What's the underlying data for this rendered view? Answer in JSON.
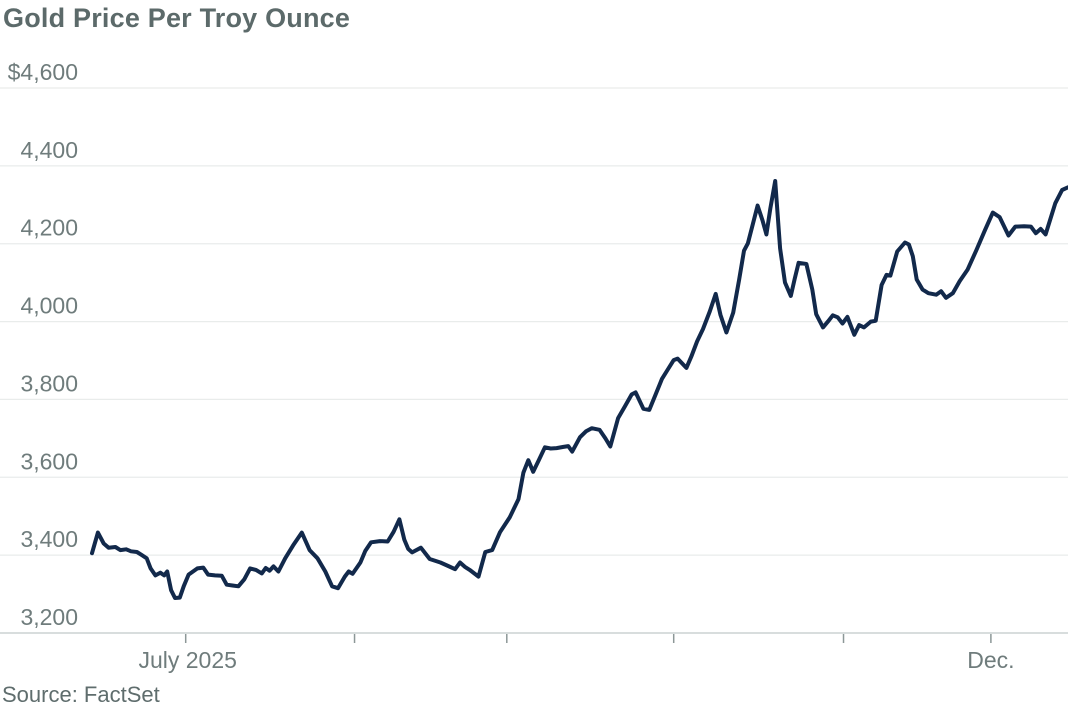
{
  "chart": {
    "title": "Gold Price Per Troy Ounce",
    "source": "Source: FactSet"
  },
  "colors": {
    "line": "#12294b",
    "gridline": "#e9eceb",
    "axis_line": "#ccd2d2",
    "tick": "#8c9797",
    "axis_text": "#6f7c7c",
    "title_text": "#5c6a6a"
  },
  "chart_data": {
    "type": "line",
    "title": "Gold Price Per Troy Ounce",
    "source": "FactSet",
    "unit": "USD per troy ounce",
    "grid": true,
    "legend": false,
    "y_axis": {
      "min": 3200,
      "max": 4600,
      "step": 200,
      "tick_labels": [
        "$4,600",
        "4,400",
        "4,200",
        "4,000",
        "3,800",
        "3,600",
        "3,400",
        "3,200"
      ]
    },
    "x_axis": {
      "ticks": [
        {
          "label": "July 2025",
          "pos": 0.096
        },
        {
          "label": "",
          "pos": 0.269
        },
        {
          "label": "",
          "pos": 0.425
        },
        {
          "label": "",
          "pos": 0.596
        },
        {
          "label": "",
          "pos": 0.77
        },
        {
          "label": "",
          "pos": 0.921
        }
      ],
      "end_label": {
        "label": "Dec.",
        "pos": 0.921
      }
    },
    "series": [
      {
        "name": "Gold price per troy ounce",
        "color": "#12294b",
        "points": [
          [
            0,
            3405
          ],
          [
            0.006,
            3458
          ],
          [
            0.012,
            3430
          ],
          [
            0.017,
            3419
          ],
          [
            0.024,
            3421
          ],
          [
            0.029,
            3413
          ],
          [
            0.035,
            3415
          ],
          [
            0.04,
            3410
          ],
          [
            0.046,
            3408
          ],
          [
            0.051,
            3400
          ],
          [
            0.056,
            3392
          ],
          [
            0.06,
            3366
          ],
          [
            0.065,
            3348
          ],
          [
            0.07,
            3355
          ],
          [
            0.074,
            3348
          ],
          [
            0.077,
            3358
          ],
          [
            0.081,
            3310
          ],
          [
            0.085,
            3290
          ],
          [
            0.09,
            3291
          ],
          [
            0.094,
            3320
          ],
          [
            0.099,
            3350
          ],
          [
            0.108,
            3366
          ],
          [
            0.114,
            3368
          ],
          [
            0.119,
            3350
          ],
          [
            0.126,
            3348
          ],
          [
            0.133,
            3347
          ],
          [
            0.138,
            3324
          ],
          [
            0.144,
            3322
          ],
          [
            0.15,
            3320
          ],
          [
            0.156,
            3338
          ],
          [
            0.162,
            3366
          ],
          [
            0.168,
            3362
          ],
          [
            0.174,
            3353
          ],
          [
            0.178,
            3367
          ],
          [
            0.182,
            3360
          ],
          [
            0.186,
            3371
          ],
          [
            0.191,
            3358
          ],
          [
            0.198,
            3392
          ],
          [
            0.206,
            3425
          ],
          [
            0.215,
            3458
          ],
          [
            0.223,
            3413
          ],
          [
            0.231,
            3392
          ],
          [
            0.239,
            3358
          ],
          [
            0.246,
            3320
          ],
          [
            0.252,
            3315
          ],
          [
            0.259,
            3345
          ],
          [
            0.263,
            3358
          ],
          [
            0.267,
            3352
          ],
          [
            0.275,
            3381
          ],
          [
            0.28,
            3411
          ],
          [
            0.286,
            3433
          ],
          [
            0.295,
            3436
          ],
          [
            0.303,
            3435
          ],
          [
            0.309,
            3460
          ],
          [
            0.315,
            3492
          ],
          [
            0.32,
            3440
          ],
          [
            0.324,
            3416
          ],
          [
            0.328,
            3407
          ],
          [
            0.337,
            3419
          ],
          [
            0.346,
            3390
          ],
          [
            0.357,
            3381
          ],
          [
            0.365,
            3372
          ],
          [
            0.372,
            3364
          ],
          [
            0.377,
            3381
          ],
          [
            0.382,
            3370
          ],
          [
            0.387,
            3362
          ],
          [
            0.396,
            3345
          ],
          [
            0.403,
            3408
          ],
          [
            0.41,
            3413
          ],
          [
            0.418,
            3459
          ],
          [
            0.428,
            3497
          ],
          [
            0.437,
            3544
          ],
          [
            0.442,
            3612
          ],
          [
            0.447,
            3644
          ],
          [
            0.452,
            3614
          ],
          [
            0.458,
            3645
          ],
          [
            0.464,
            3677
          ],
          [
            0.47,
            3674
          ],
          [
            0.476,
            3675
          ],
          [
            0.483,
            3678
          ],
          [
            0.488,
            3680
          ],
          [
            0.492,
            3666
          ],
          [
            0.5,
            3703
          ],
          [
            0.506,
            3718
          ],
          [
            0.512,
            3726
          ],
          [
            0.52,
            3722
          ],
          [
            0.526,
            3700
          ],
          [
            0.531,
            3679
          ],
          [
            0.539,
            3752
          ],
          [
            0.546,
            3782
          ],
          [
            0.553,
            3813
          ],
          [
            0.557,
            3818
          ],
          [
            0.565,
            3776
          ],
          [
            0.571,
            3773
          ],
          [
            0.577,
            3810
          ],
          [
            0.584,
            3853
          ],
          [
            0.59,
            3877
          ],
          [
            0.596,
            3901
          ],
          [
            0.6,
            3905
          ],
          [
            0.609,
            3881
          ],
          [
            0.614,
            3910
          ],
          [
            0.62,
            3949
          ],
          [
            0.626,
            3981
          ],
          [
            0.633,
            4026
          ],
          [
            0.639,
            4071
          ],
          [
            0.644,
            4017
          ],
          [
            0.65,
            3972
          ],
          [
            0.657,
            4023
          ],
          [
            0.663,
            4107
          ],
          [
            0.668,
            4182
          ],
          [
            0.672,
            4201
          ],
          [
            0.677,
            4250
          ],
          [
            0.682,
            4298
          ],
          [
            0.687,
            4260
          ],
          [
            0.691,
            4224
          ],
          [
            0.695,
            4290
          ],
          [
            0.7,
            4361
          ],
          [
            0.705,
            4188
          ],
          [
            0.71,
            4100
          ],
          [
            0.716,
            4066
          ],
          [
            0.72,
            4110
          ],
          [
            0.724,
            4151
          ],
          [
            0.732,
            4148
          ],
          [
            0.738,
            4082
          ],
          [
            0.742,
            4019
          ],
          [
            0.749,
            3985
          ],
          [
            0.754,
            4000
          ],
          [
            0.759,
            4016
          ],
          [
            0.764,
            4011
          ],
          [
            0.769,
            3995
          ],
          [
            0.774,
            4012
          ],
          [
            0.781,
            3966
          ],
          [
            0.786,
            3991
          ],
          [
            0.791,
            3985
          ],
          [
            0.798,
            4000
          ],
          [
            0.803,
            4002
          ],
          [
            0.809,
            4094
          ],
          [
            0.814,
            4120
          ],
          [
            0.818,
            4118
          ],
          [
            0.825,
            4180
          ],
          [
            0.833,
            4203
          ],
          [
            0.837,
            4198
          ],
          [
            0.841,
            4168
          ],
          [
            0.845,
            4108
          ],
          [
            0.851,
            4082
          ],
          [
            0.857,
            4073
          ],
          [
            0.865,
            4069
          ],
          [
            0.87,
            4078
          ],
          [
            0.875,
            4061
          ],
          [
            0.882,
            4073
          ],
          [
            0.889,
            4104
          ],
          [
            0.897,
            4133
          ],
          [
            0.906,
            4183
          ],
          [
            0.915,
            4235
          ],
          [
            0.923,
            4280
          ],
          [
            0.93,
            4268
          ],
          [
            0.939,
            4221
          ],
          [
            0.946,
            4244
          ],
          [
            0.955,
            4245
          ],
          [
            0.962,
            4244
          ],
          [
            0.967,
            4227
          ],
          [
            0.972,
            4238
          ],
          [
            0.977,
            4224
          ],
          [
            0.987,
            4304
          ],
          [
            0.994,
            4338
          ],
          [
            1,
            4345
          ]
        ]
      }
    ]
  }
}
